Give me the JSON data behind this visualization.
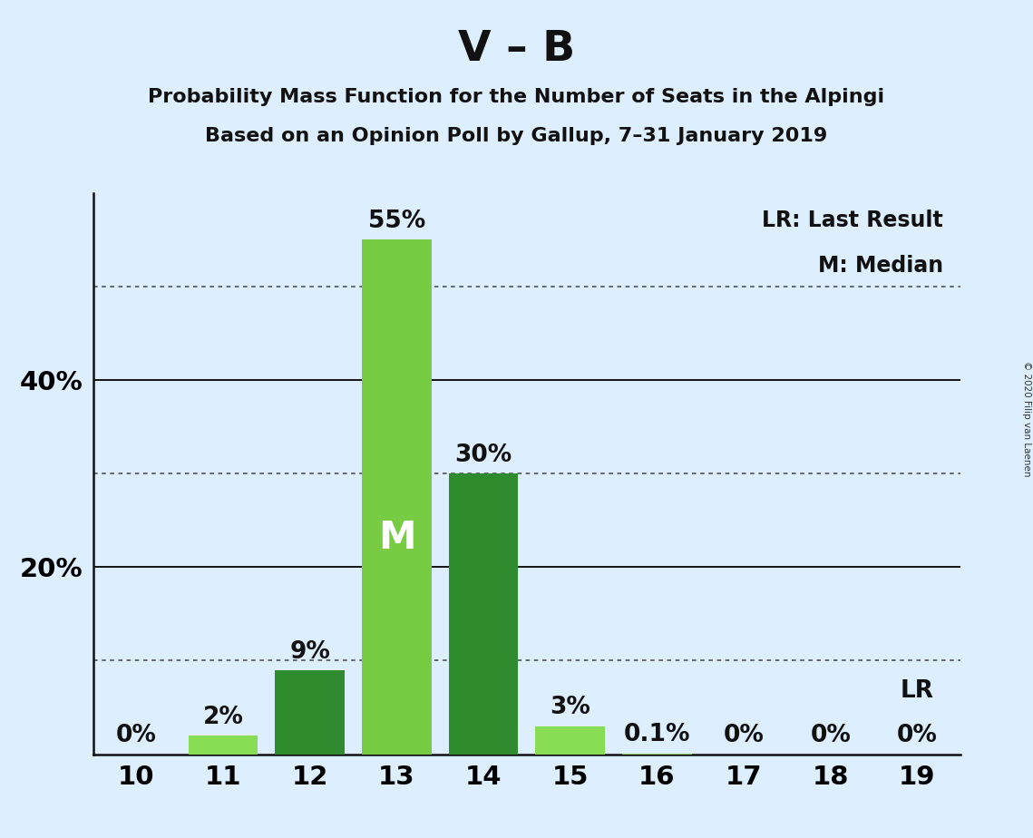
{
  "title": "V – B",
  "subtitle1": "Probability Mass Function for the Number of Seats in the Alpingi",
  "subtitle2": "Based on an Opinion Poll by Gallup, 7–31 January 2019",
  "copyright": "© 2020 Filip van Laenen",
  "categories": [
    10,
    11,
    12,
    13,
    14,
    15,
    16,
    17,
    18,
    19
  ],
  "values": [
    0.0,
    2.0,
    9.0,
    55.0,
    30.0,
    3.0,
    0.1,
    0.0,
    0.0,
    0.0
  ],
  "bar_labels": [
    "0%",
    "2%",
    "9%",
    "55%",
    "30%",
    "3%",
    "0.1%",
    "0%",
    "0%",
    "0%"
  ],
  "bar_colors": [
    "#88cc66",
    "#88dd55",
    "#2e8b2e",
    "#77cc44",
    "#2e8b2e",
    "#88dd55",
    "#88cc66",
    "#88cc66",
    "#88cc66",
    "#88cc66"
  ],
  "median_bar": 13,
  "lr_bar": 19,
  "background_color": "#ddeeff",
  "ylim_max": 60,
  "solid_gridlines": [
    20,
    40
  ],
  "dotted_gridlines": [
    10,
    30,
    50
  ],
  "legend_lr": "LR: Last Result",
  "legend_m": "M: Median",
  "title_fontsize": 34,
  "subtitle_fontsize": 16,
  "label_fontsize": 19,
  "axis_tick_fontsize": 21,
  "ytick_label_fontsize": 21
}
